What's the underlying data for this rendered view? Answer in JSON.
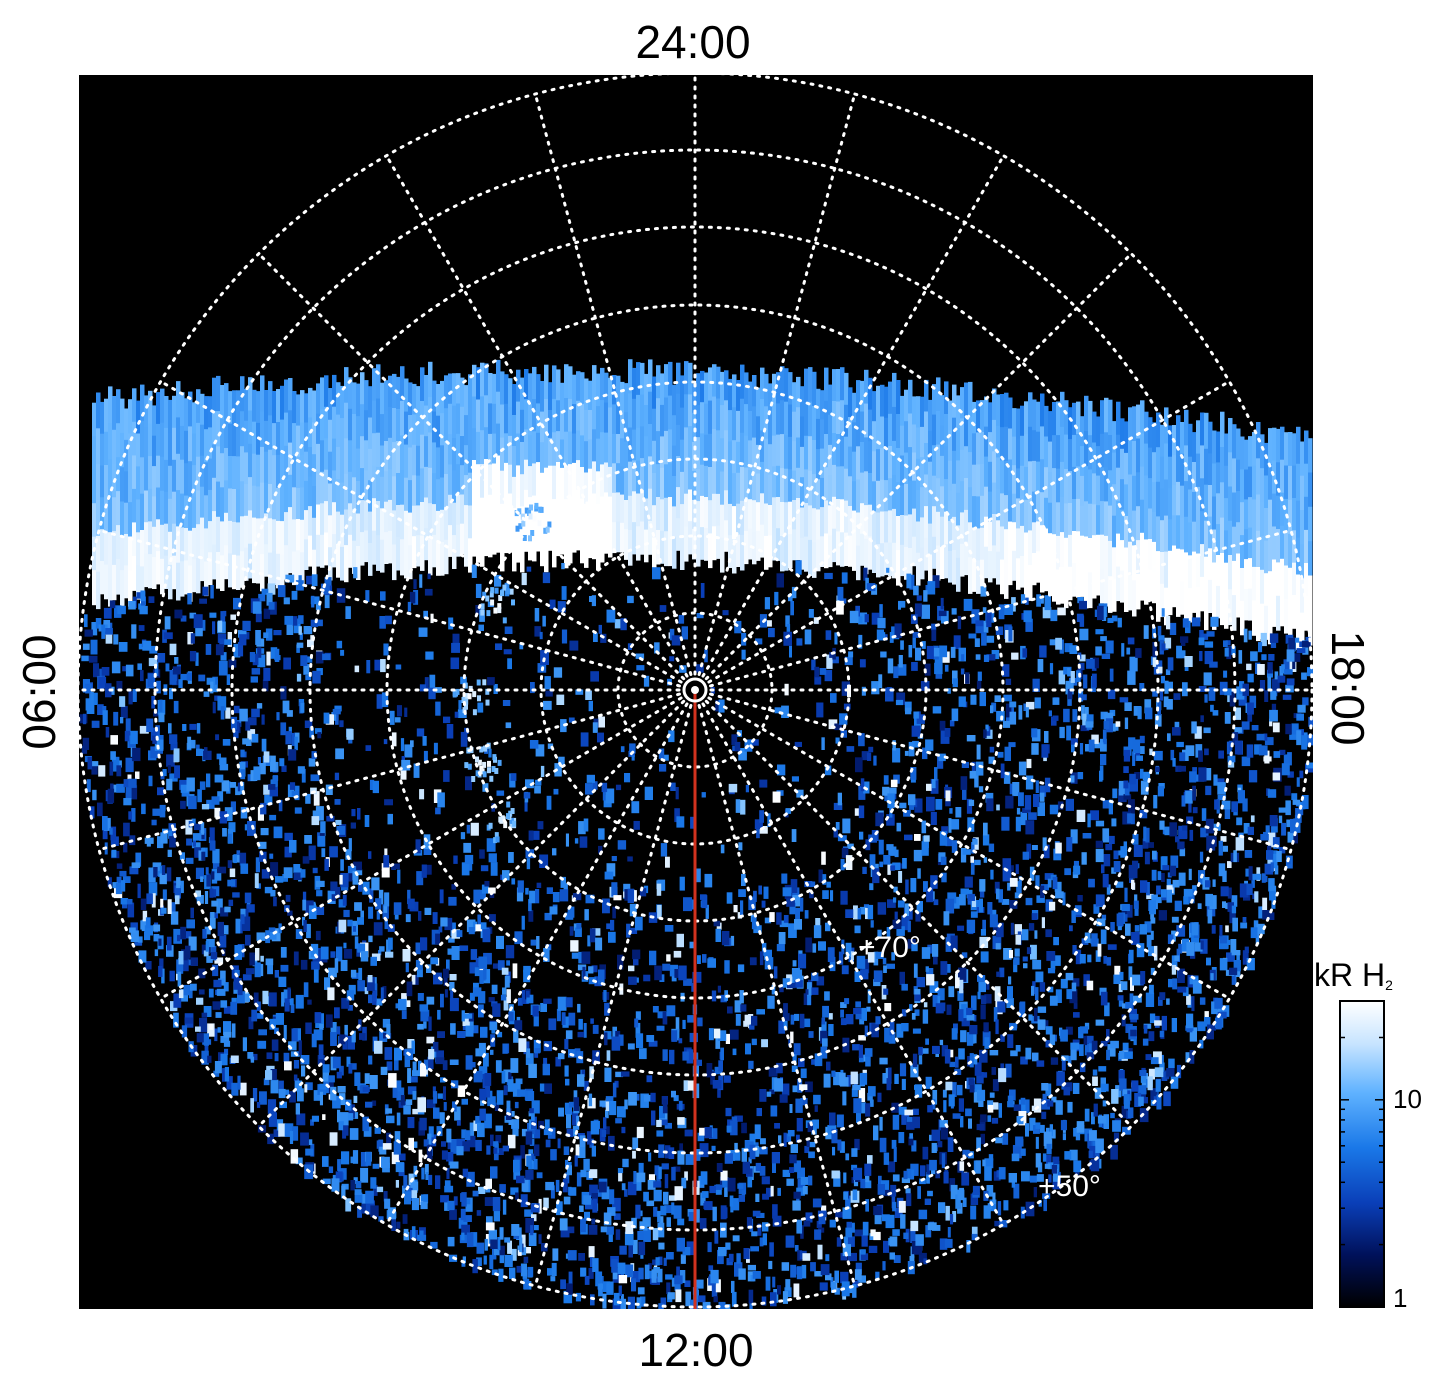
{
  "chart_data": {
    "type": "heatmap",
    "projection": "polar",
    "title": "",
    "local_time_labels": {
      "top": "24:00",
      "bottom": "12:00",
      "left": "06:00",
      "right": "18:00"
    },
    "latitude_labels": [
      "+70°",
      "+50°"
    ],
    "colorbar": {
      "label_main": "kR H",
      "label_subscript": "2",
      "scale": "log",
      "range": [
        1,
        30
      ],
      "tick_labels": [
        "10",
        "1"
      ],
      "colors": [
        "#000000",
        "#00115a",
        "#0a3fb8",
        "#1a78e8",
        "#5fb2ff",
        "#c7e4ff",
        "#ffffff"
      ]
    },
    "grid": true,
    "meridian_line_color": "#d2321e",
    "background_color": "#000000",
    "auroral_oval": {
      "description_hint": "bright emission band on the night side, with a hook toward the morning sector",
      "peak_intensity_kR": 30,
      "background_intensity_kR": 3
    }
  }
}
